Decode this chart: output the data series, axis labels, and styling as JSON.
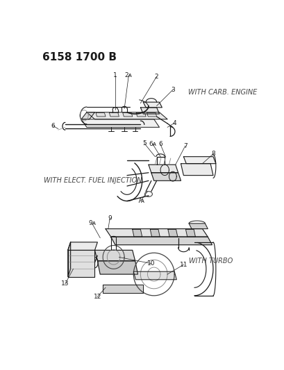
{
  "title": "6158 1700 B",
  "bg_color": "#ffffff",
  "line_color": "#1a1a1a",
  "gray_color": "#888888",
  "dark_gray": "#444444",
  "title_fontsize": 11,
  "annotation_fontsize": 6.5,
  "section_label_fontsize": 6,
  "d1_label": "WITH CARB. ENGINE",
  "d2_label": "WITH ELECT. FUEL INJECTION",
  "d3_label": "WITH TURBO"
}
